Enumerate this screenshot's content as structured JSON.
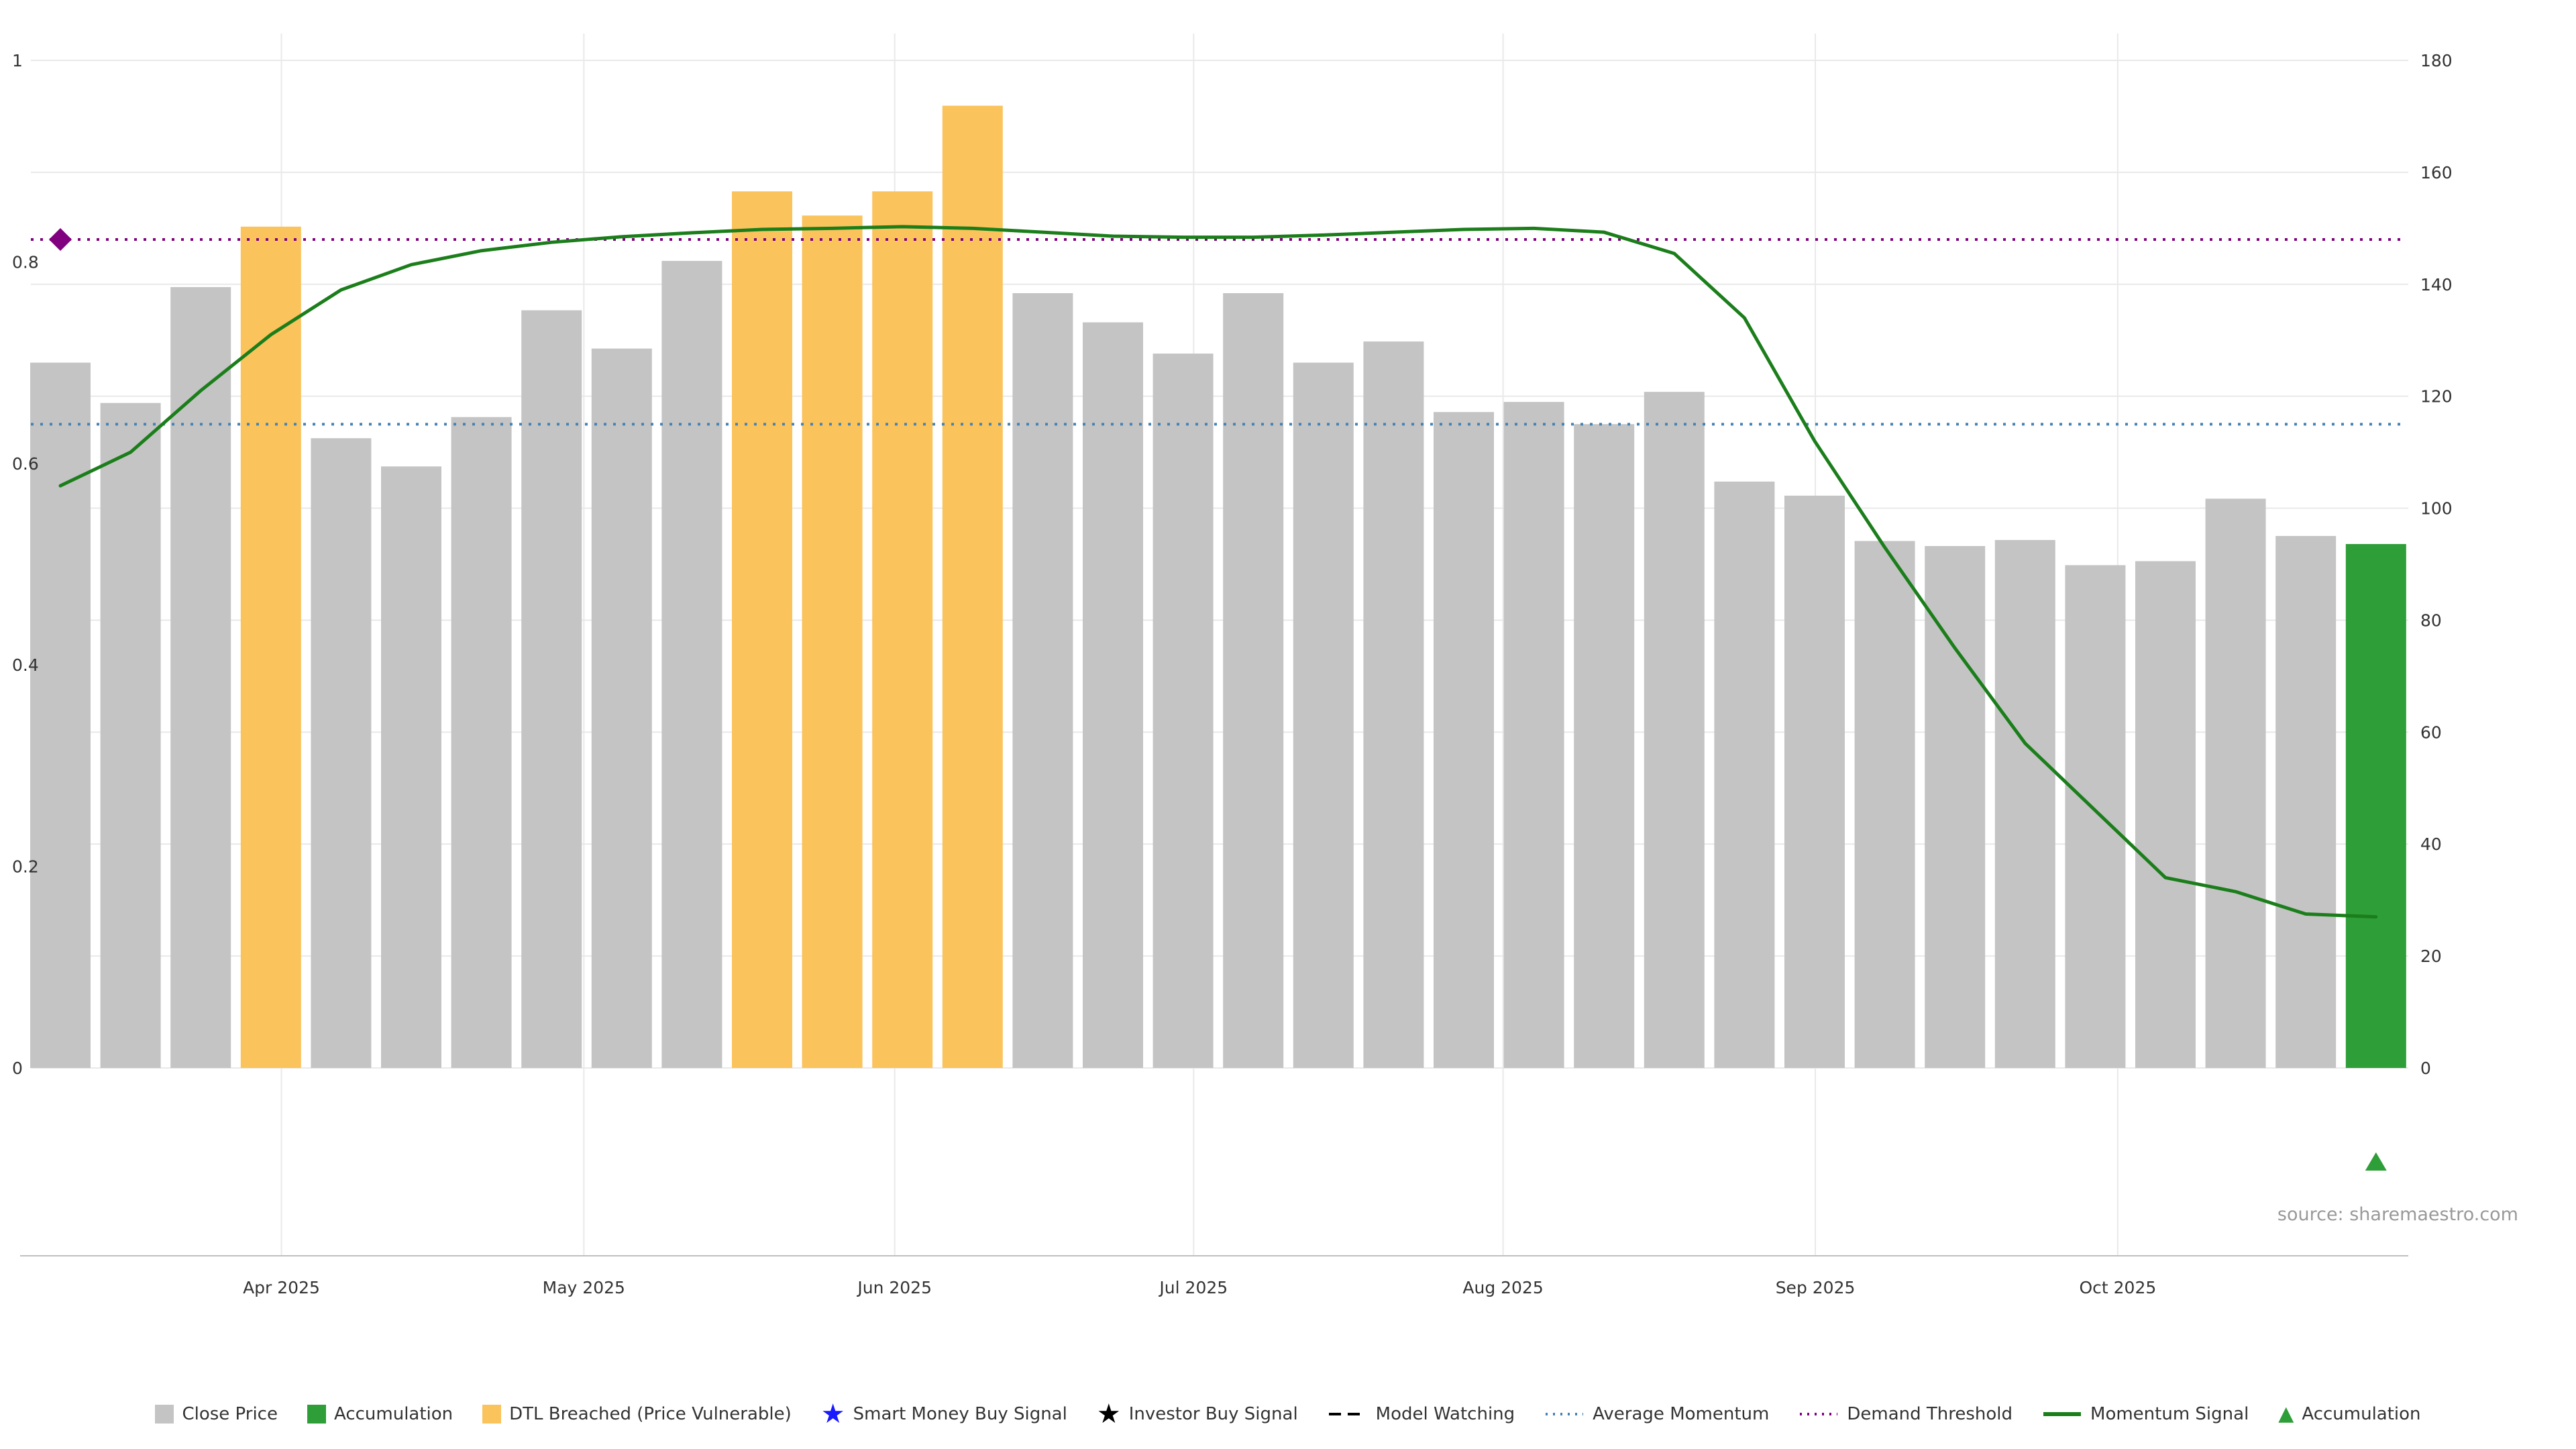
{
  "source_text": "source: sharemaestro.com",
  "colors": {
    "close_price": "#c4c4c4",
    "accumulation": "#2e9e38",
    "dtl_breached": "#fbc35c",
    "momentum_line": "#1b7e1b",
    "average_momentum": "#4682b4",
    "demand_threshold": "#800080",
    "smart_money_star": "#1a1aff",
    "investor_star": "#000000",
    "model_watching": "#000000",
    "grid": "#e9e9e9",
    "axis_text": "#333333",
    "spine": "#c0c0c0",
    "source_text_color": "#999999"
  },
  "chart_data": {
    "type": "bar",
    "subtype": "weekly bars with dual-axis momentum line overlay",
    "title": "",
    "xlabel": "",
    "ylabel": "",
    "grid": true,
    "legend_position": "bottom-center",
    "left_axis": {
      "min": 0,
      "max": 1,
      "tick_values": [
        0,
        0.2,
        0.4,
        0.6,
        0.8,
        1
      ],
      "tick_labels": [
        "0",
        "0.2",
        "0.4",
        "0.6",
        "0.8",
        "1"
      ]
    },
    "right_axis": {
      "min": 0,
      "max": 180,
      "tick_values": [
        0,
        20,
        40,
        60,
        80,
        100,
        120,
        140,
        160,
        180
      ],
      "tick_labels": [
        "0",
        "20",
        "40",
        "60",
        "80",
        "100",
        "120",
        "140",
        "160",
        "180"
      ]
    },
    "x_ticks": [
      {
        "label": "Apr 2025",
        "pos": 3.15
      },
      {
        "label": "May 2025",
        "pos": 7.46
      },
      {
        "label": "Jun 2025",
        "pos": 11.89
      },
      {
        "label": "Jul 2025",
        "pos": 16.15
      },
      {
        "label": "Aug 2025",
        "pos": 20.56
      },
      {
        "label": "Sep 2025",
        "pos": 25.01
      },
      {
        "label": "Oct 2025",
        "pos": 29.32
      }
    ],
    "bars": {
      "series_name": "Close Price (normalized, weekly)",
      "axis": "left",
      "values": [
        0.7,
        0.66,
        0.775,
        0.835,
        0.625,
        0.597,
        0.646,
        0.752,
        0.714,
        0.801,
        0.87,
        0.846,
        0.87,
        0.955,
        0.769,
        0.74,
        0.709,
        0.769,
        0.7,
        0.721,
        0.651,
        0.661,
        0.639,
        0.671,
        0.582,
        0.568,
        0.523,
        0.518,
        0.524,
        0.499,
        0.503,
        0.565,
        0.528,
        0.52
      ],
      "types": [
        "close",
        "close",
        "close",
        "dtl",
        "close",
        "close",
        "close",
        "close",
        "close",
        "close",
        "dtl",
        "dtl",
        "dtl",
        "dtl",
        "close",
        "close",
        "close",
        "close",
        "close",
        "close",
        "close",
        "close",
        "close",
        "close",
        "close",
        "close",
        "close",
        "close",
        "close",
        "close",
        "close",
        "close",
        "close",
        "accumulation"
      ]
    },
    "momentum_signal": {
      "name": "Momentum Signal",
      "axis": "right",
      "values": [
        104,
        110,
        121,
        131,
        139,
        143.5,
        146,
        147.5,
        148.5,
        149.2,
        149.8,
        150,
        150.3,
        150,
        149.3,
        148.6,
        148.4,
        148.4,
        148.8,
        149.3,
        149.8,
        150,
        149.3,
        145.5,
        134,
        112,
        93,
        75,
        58,
        46,
        34,
        31.5,
        27.5,
        27
      ]
    },
    "reference_lines": [
      {
        "name": "Demand Threshold",
        "axis": "right",
        "value": 148,
        "style": "dotted",
        "color_key": "demand_threshold"
      },
      {
        "name": "Average Momentum",
        "axis": "right",
        "value": 115,
        "style": "dotted",
        "color_key": "average_momentum"
      }
    ],
    "markers": [
      {
        "name": "demand-threshold-diamond",
        "shape": "diamond",
        "bar_index": 0,
        "axis": "right",
        "value": 148,
        "color_key": "demand_threshold"
      },
      {
        "name": "accumulation-triangle",
        "shape": "triangle-up",
        "bar_index": 33,
        "below_axis": true,
        "color_key": "accumulation"
      }
    ]
  },
  "legend": {
    "items": [
      {
        "key": "close-price",
        "swatch": "square",
        "color_key": "close_price",
        "label": "Close Price"
      },
      {
        "key": "accumulation-bar",
        "swatch": "square",
        "color_key": "accumulation",
        "label": "Accumulation"
      },
      {
        "key": "dtl-breached",
        "swatch": "square",
        "color_key": "dtl_breached",
        "label": "DTL Breached (Price Vulnerable)"
      },
      {
        "key": "smart-money-buy-signal",
        "swatch": "star",
        "color_key": "smart_money_star",
        "label": "Smart Money Buy Signal"
      },
      {
        "key": "investor-buy-signal",
        "swatch": "star",
        "color_key": "investor_star",
        "label": "Investor Buy Signal"
      },
      {
        "key": "model-watching",
        "swatch": "dash",
        "color_key": "model_watching",
        "label": "Model Watching"
      },
      {
        "key": "average-momentum",
        "swatch": "dotted",
        "color_key": "average_momentum",
        "label": "Average Momentum"
      },
      {
        "key": "demand-threshold",
        "swatch": "dotted",
        "color_key": "demand_threshold",
        "label": "Demand Threshold"
      },
      {
        "key": "momentum-signal",
        "swatch": "line",
        "color_key": "momentum_line",
        "label": "Momentum Signal"
      },
      {
        "key": "accumulation-marker",
        "swatch": "triangle",
        "color_key": "accumulation",
        "label": "Accumulation"
      }
    ]
  }
}
